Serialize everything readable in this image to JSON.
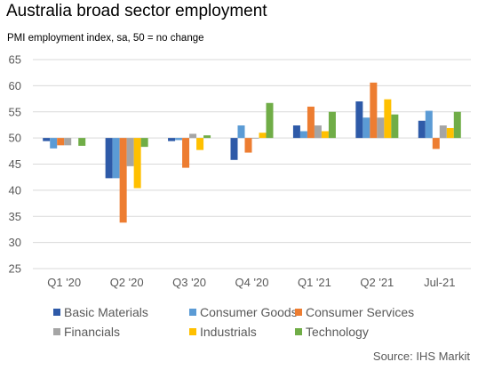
{
  "title": "Australia broad sector employment",
  "subtitle": "PMI employment index, sa, 50 = no change",
  "source": "Source: IHS Markit",
  "chart_data": {
    "type": "bar",
    "categories": [
      "Q1 '20",
      "Q2 '20",
      "Q3 '20",
      "Q4 '20",
      "Q1 '21",
      "Q2 '21",
      "Jul-21"
    ],
    "ylim": [
      25,
      65
    ],
    "yticks": [
      25,
      30,
      35,
      40,
      45,
      50,
      55,
      60,
      65
    ],
    "baseline": 50,
    "grid": true,
    "legend_position": "bottom",
    "series": [
      {
        "name": "Basic Materials",
        "color": "#2e5aa8",
        "values": [
          49.4,
          42.3,
          49.4,
          45.8,
          52.4,
          57.0,
          53.3
        ]
      },
      {
        "name": "Consumer Goods",
        "color": "#5b9bd5",
        "values": [
          48.0,
          42.3,
          49.6,
          52.4,
          51.3,
          53.9,
          55.2
        ]
      },
      {
        "name": "Consumer Services",
        "color": "#ed7d31",
        "values": [
          48.6,
          33.8,
          44.3,
          47.2,
          56.0,
          60.6,
          47.9
        ]
      },
      {
        "name": "Financials",
        "color": "#a5a5a5",
        "values": [
          48.6,
          44.6,
          50.8,
          49.9,
          52.4,
          53.9,
          52.4
        ]
      },
      {
        "name": "Industrials",
        "color": "#ffc000",
        "values": [
          null,
          40.4,
          47.7,
          51.0,
          51.3,
          57.4,
          51.9
        ]
      },
      {
        "name": "Technology",
        "color": "#70ad47",
        "values": [
          48.5,
          48.3,
          50.5,
          56.7,
          55.0,
          54.5,
          55.0
        ]
      }
    ]
  }
}
